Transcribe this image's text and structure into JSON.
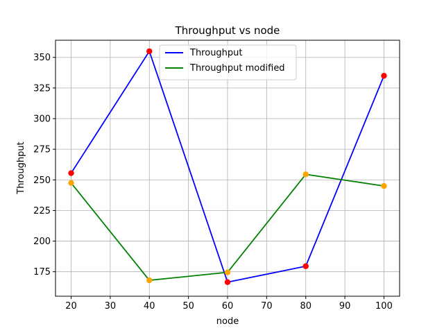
{
  "chart_data": {
    "type": "line",
    "title": "Throughput vs node",
    "xlabel": "node",
    "ylabel": "Throughput",
    "x": [
      20,
      40,
      60,
      80,
      100
    ],
    "xlim": [
      16,
      104
    ],
    "ylim": [
      155,
      364
    ],
    "xticks": [
      20,
      30,
      40,
      50,
      60,
      70,
      80,
      90,
      100
    ],
    "yticks": [
      175,
      200,
      225,
      250,
      275,
      300,
      325,
      350
    ],
    "grid": true,
    "legend_position": "top-center",
    "series": [
      {
        "name": "Throughput",
        "values": [
          255.5,
          355,
          166.5,
          179.5,
          335
        ],
        "line_color": "#0000ff",
        "marker_color": "#ff0000"
      },
      {
        "name": "Throughput modified",
        "values": [
          247.5,
          168,
          174.5,
          254.5,
          245
        ],
        "line_color": "#008000",
        "marker_color": "#ffa500"
      }
    ]
  }
}
